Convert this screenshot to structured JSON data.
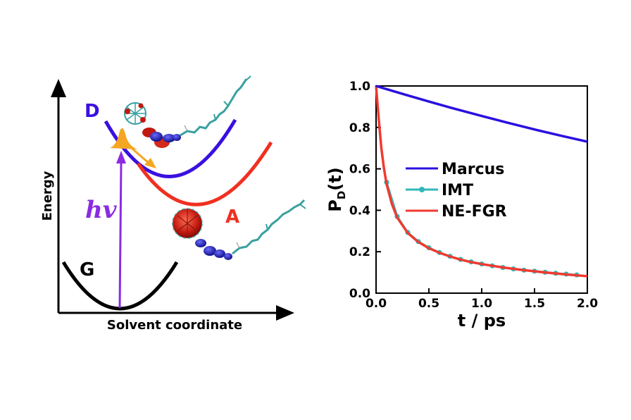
{
  "schematic": {
    "y_axis_label": "Energy",
    "x_axis_label": "Solvent coordinate",
    "curve_labels": {
      "donor": "D",
      "acceptor": "A",
      "ground": "G"
    },
    "excitation_label": "hv",
    "colors": {
      "donor": "#3a10e0",
      "acceptor": "#f03020",
      "ground": "#000000",
      "excitation": "#8a2be2",
      "wavepacket": "#f5a623"
    }
  },
  "chart_data": {
    "type": "line",
    "xlabel": "t / ps",
    "ylabel_main": "P",
    "ylabel_sub": "D",
    "ylabel_tail": "(t)",
    "xlim": [
      0.0,
      2.0
    ],
    "ylim": [
      0.0,
      1.0
    ],
    "xticks": [
      "0.0",
      "0.5",
      "1.0",
      "1.5",
      "2.0"
    ],
    "yticks": [
      "0.0",
      "0.2",
      "0.4",
      "0.6",
      "0.8",
      "1.0"
    ],
    "xtick_values": [
      0.0,
      0.5,
      1.0,
      1.5,
      2.0
    ],
    "ytick_values": [
      0.0,
      0.2,
      0.4,
      0.6,
      0.8,
      1.0
    ],
    "legend_position": "center-right",
    "series": [
      {
        "name": "Marcus",
        "color": "#2a10e0",
        "x": [
          0.0,
          0.25,
          0.5,
          0.75,
          1.0,
          1.25,
          1.5,
          1.75,
          2.0
        ],
        "y": [
          1.0,
          0.962,
          0.925,
          0.889,
          0.855,
          0.822,
          0.79,
          0.76,
          0.731
        ]
      },
      {
        "name": "IMT",
        "color": "#30b8b8",
        "marker": "circle",
        "x": [
          0.1,
          0.2,
          0.3,
          0.4,
          0.5,
          0.6,
          0.7,
          0.8,
          0.9,
          1.0,
          1.1,
          1.2,
          1.3,
          1.4,
          1.5,
          1.6,
          1.7,
          1.8,
          1.9
        ],
        "y": [
          0.535,
          0.37,
          0.293,
          0.249,
          0.219,
          0.196,
          0.178,
          0.163,
          0.151,
          0.141,
          0.132,
          0.124,
          0.117,
          0.111,
          0.106,
          0.101,
          0.096,
          0.092,
          0.088
        ]
      },
      {
        "name": "NE-FGR",
        "color": "#f03a30",
        "x": [
          0.0,
          0.025,
          0.05,
          0.075,
          0.1,
          0.15,
          0.2,
          0.3,
          0.4,
          0.5,
          0.6,
          0.7,
          0.8,
          0.9,
          1.0,
          1.2,
          1.4,
          1.6,
          1.8,
          2.0
        ],
        "y": [
          1.0,
          0.84,
          0.7,
          0.6,
          0.525,
          0.43,
          0.365,
          0.29,
          0.247,
          0.217,
          0.195,
          0.177,
          0.162,
          0.15,
          0.14,
          0.124,
          0.111,
          0.1,
          0.09,
          0.082
        ]
      }
    ]
  }
}
